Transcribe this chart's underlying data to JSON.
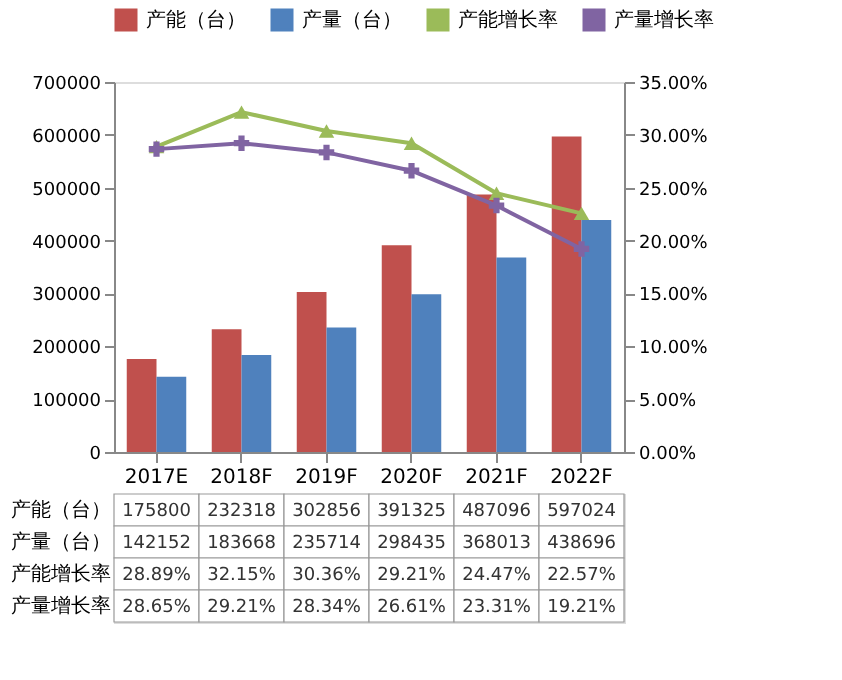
{
  "chart_data": {
    "type": "bar",
    "categories": [
      "2017E",
      "2018F",
      "2019F",
      "2020F",
      "2021F",
      "2022F"
    ],
    "series": [
      {
        "name": "产能（台）",
        "color": "#c0504d",
        "values": [
          175800,
          232318,
          302856,
          391325,
          487096,
          597024
        ],
        "value_labels": [
          "175800",
          "232318",
          "302856",
          "391325",
          "487096",
          "597024"
        ]
      },
      {
        "name": "产量（台）",
        "color": "#4f81bd",
        "values": [
          142152,
          183668,
          235714,
          298435,
          368013,
          438696
        ],
        "value_labels": [
          "142152",
          "183668",
          "235714",
          "298435",
          "368013",
          "438696"
        ]
      },
      {
        "name": "产能增长率",
        "type": "line",
        "axis": "y2",
        "marker": "triangle",
        "color": "#9bbb59",
        "values": [
          28.89,
          32.15,
          30.36,
          29.21,
          24.47,
          22.57
        ],
        "value_labels": [
          "28.89%",
          "32.15%",
          "30.36%",
          "29.21%",
          "24.47%",
          "22.57%"
        ]
      },
      {
        "name": "产量增长率",
        "type": "line",
        "axis": "y2",
        "marker": "cross",
        "color": "#8064a2",
        "values": [
          28.65,
          29.21,
          28.34,
          26.61,
          23.31,
          19.21
        ],
        "value_labels": [
          "28.65%",
          "29.21%",
          "28.34%",
          "26.61%",
          "23.31%",
          "19.21%"
        ]
      }
    ],
    "ylim": [
      0,
      700000
    ],
    "yticks": [
      0,
      100000,
      200000,
      300000,
      400000,
      500000,
      600000,
      700000
    ],
    "y2lim": [
      0,
      35
    ],
    "y2ticks": [
      {
        "value": 0,
        "label": "0.00%"
      },
      {
        "value": 5,
        "label": "5.00%"
      },
      {
        "value": 10,
        "label": "10.00%"
      },
      {
        "value": 15,
        "label": "15.00%"
      },
      {
        "value": 20,
        "label": "20.00%"
      },
      {
        "value": 25,
        "label": "25.00%"
      },
      {
        "value": 30,
        "label": "30.00%"
      },
      {
        "value": 35,
        "label": "35.00%"
      }
    ],
    "grid": false,
    "legend": "top"
  }
}
